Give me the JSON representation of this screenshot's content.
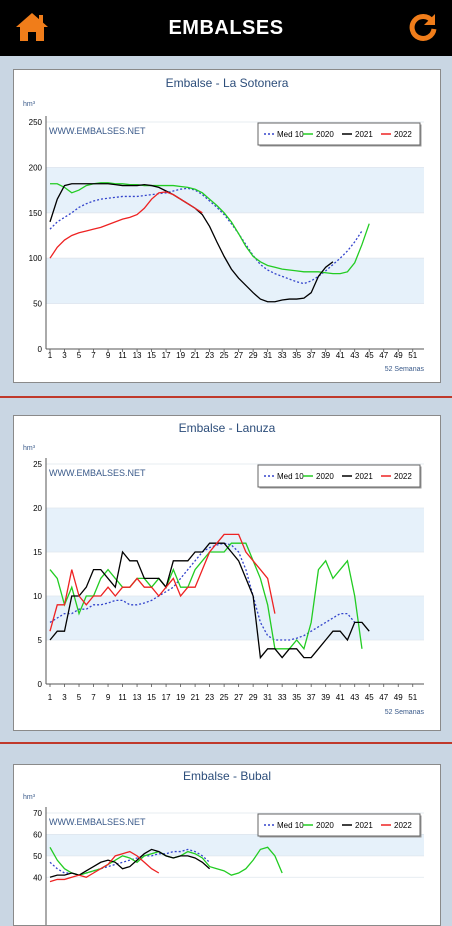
{
  "app": {
    "title": "EMBALSES",
    "home_icon": "home-icon",
    "refresh_icon": "refresh-icon",
    "accent": "#f07d1a"
  },
  "colors": {
    "med10": "#3344cc",
    "y2020": "#22cc22",
    "y2021": "#000000",
    "y2022": "#ee2222",
    "band": "#e6f1fa",
    "divider": "#c0392b"
  },
  "chart_data": [
    {
      "type": "line",
      "title": "Embalse - La Sotonera",
      "unit": "hm³",
      "watermark": "WWW.EMBALSES.NET",
      "xlabel": "52 Semanas",
      "ylim": [
        0,
        250
      ],
      "yticks": [
        0,
        50,
        100,
        150,
        200,
        250
      ],
      "xticks": [
        "1",
        "3",
        "5",
        "7",
        "9",
        "11",
        "13",
        "15",
        "17",
        "19",
        "21",
        "23",
        "25",
        "27",
        "29",
        "31",
        "33",
        "35",
        "37",
        "39",
        "41",
        "43",
        "45",
        "47",
        "49",
        "51"
      ],
      "grid": true,
      "legend_position": "top-right",
      "series": [
        {
          "name": "Med 10",
          "values": [
            132,
            140,
            145,
            150,
            156,
            160,
            163,
            165,
            166,
            167,
            168,
            168,
            168,
            169,
            170,
            171,
            172,
            174,
            176,
            177,
            175,
            170,
            163,
            156,
            148,
            138,
            127,
            115,
            103,
            93,
            87,
            83,
            80,
            77,
            74,
            72,
            75,
            80,
            86,
            93,
            100,
            108,
            118,
            130
          ]
        },
        {
          "name": "2020",
          "values": [
            182,
            182,
            178,
            172,
            175,
            180,
            182,
            183,
            183,
            182,
            182,
            181,
            181,
            180,
            180,
            180,
            180,
            180,
            179,
            178,
            176,
            172,
            165,
            158,
            150,
            140,
            127,
            113,
            102,
            96,
            92,
            90,
            88,
            87,
            86,
            85,
            85,
            85,
            84,
            83,
            83,
            85,
            95,
            115,
            138
          ]
        },
        {
          "name": "2021",
          "values": [
            140,
            165,
            180,
            182,
            182,
            182,
            182,
            182,
            182,
            181,
            180,
            180,
            180,
            181,
            180,
            178,
            174,
            170,
            165,
            160,
            155,
            148,
            135,
            118,
            102,
            88,
            78,
            70,
            62,
            55,
            52,
            52,
            54,
            55,
            55,
            56,
            62,
            80,
            90,
            96
          ]
        },
        {
          "name": "2022",
          "values": [
            100,
            112,
            120,
            125,
            128,
            130,
            132,
            134,
            137,
            140,
            143,
            145,
            148,
            155,
            165,
            172,
            173,
            170,
            165,
            160,
            155,
            150
          ]
        }
      ]
    },
    {
      "type": "line",
      "title": "Embalse - Lanuza",
      "unit": "hm³",
      "watermark": "WWW.EMBALSES.NET",
      "xlabel": "52 Semanas",
      "ylim": [
        0,
        25
      ],
      "yticks": [
        0,
        5,
        10,
        15,
        20,
        25
      ],
      "xticks": [
        "1",
        "3",
        "5",
        "7",
        "9",
        "11",
        "13",
        "15",
        "17",
        "19",
        "21",
        "23",
        "25",
        "27",
        "29",
        "31",
        "33",
        "35",
        "37",
        "39",
        "41",
        "43",
        "45",
        "47",
        "49",
        "51"
      ],
      "grid": true,
      "legend_position": "top-right",
      "series": [
        {
          "name": "Med 10",
          "values": [
            7,
            7.5,
            8,
            8,
            8.5,
            8.5,
            9,
            9,
            9.2,
            9.5,
            9.5,
            9,
            9,
            9.2,
            9.5,
            10,
            10.5,
            11,
            12,
            13,
            14,
            15,
            15.5,
            15.8,
            16,
            15.8,
            15,
            13,
            10,
            7,
            5.5,
            5,
            5,
            5,
            5.2,
            5.5,
            6,
            6.5,
            7,
            7.5,
            8,
            8,
            7
          ]
        },
        {
          "name": "2020",
          "values": [
            13,
            12,
            9,
            11,
            8,
            10,
            10,
            12,
            13,
            12,
            11,
            11,
            12,
            12,
            11,
            12,
            11,
            13,
            11,
            11,
            13,
            14,
            15,
            15,
            15,
            16,
            16,
            16,
            14,
            12,
            9,
            4,
            4,
            4,
            5,
            4,
            7,
            13,
            14,
            12,
            13,
            14,
            10,
            4
          ]
        },
        {
          "name": "2021",
          "values": [
            5,
            6,
            6,
            10,
            10,
            11,
            13,
            13,
            12,
            11,
            15,
            14,
            14,
            12,
            12,
            12,
            11,
            14,
            14,
            14,
            15,
            15,
            16,
            16,
            16,
            15,
            14,
            12,
            10,
            3,
            4,
            4,
            3,
            4,
            4,
            3,
            3,
            4,
            5,
            6,
            6,
            5,
            7,
            7,
            6
          ]
        },
        {
          "name": "2022",
          "values": [
            6,
            9,
            9,
            13,
            10,
            9,
            10,
            10,
            11,
            10,
            11,
            11,
            12,
            11,
            11,
            10,
            11,
            12,
            10,
            11,
            11,
            13,
            15,
            16,
            17,
            17,
            17,
            15,
            14,
            13,
            12,
            8
          ]
        }
      ]
    },
    {
      "type": "line",
      "title": "Embalse - Bubal",
      "unit": "hm³",
      "watermark": "WWW.EMBALSES.NET",
      "ylim": [
        0,
        70
      ],
      "yticks": [
        40,
        50,
        60,
        70
      ],
      "grid": true,
      "legend_position": "top-right",
      "series": [
        {
          "name": "Med 10",
          "values": [
            47,
            44,
            42,
            42,
            41,
            42,
            43,
            44,
            45,
            46,
            47,
            48,
            49,
            50,
            50,
            51,
            51,
            52,
            52,
            53,
            52,
            50,
            47
          ]
        },
        {
          "name": "2020",
          "values": [
            54,
            48,
            44,
            42,
            41,
            42,
            43,
            44,
            46,
            48,
            50,
            49,
            47,
            50,
            51,
            52,
            50,
            49,
            50,
            52,
            51,
            49,
            45,
            44,
            43,
            41,
            42,
            44,
            48,
            53,
            54,
            50,
            42
          ]
        },
        {
          "name": "2021",
          "values": [
            40,
            41,
            41,
            42,
            41,
            43,
            45,
            47,
            48,
            47,
            44,
            45,
            48,
            51,
            53,
            52,
            50,
            49,
            50,
            50,
            49,
            47,
            44
          ]
        },
        {
          "name": "2022",
          "values": [
            38,
            39,
            39,
            40,
            41,
            40,
            42,
            44,
            46,
            50,
            51,
            52,
            50,
            47,
            44,
            42
          ]
        }
      ]
    }
  ],
  "legend_labels": [
    "Med 10",
    "2020",
    "2021",
    "2022"
  ]
}
